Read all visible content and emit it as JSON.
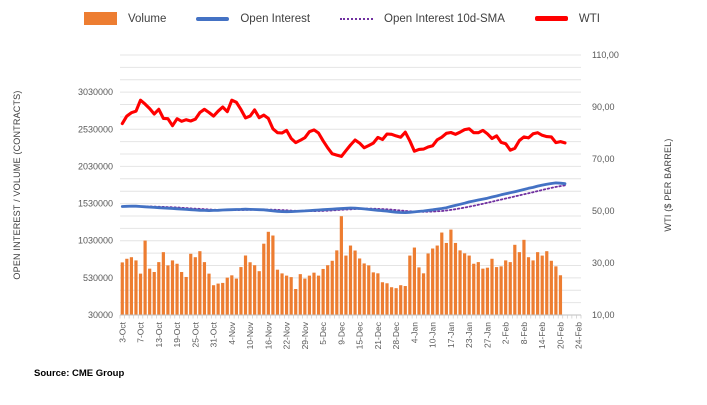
{
  "source": "Source: CME Group",
  "chart_data": {
    "type": "combo",
    "title": "",
    "grid": "horizontal-minor",
    "legend_position": "top",
    "x_axis": {
      "labels": [
        "3-Oct",
        "7-Oct",
        "13-Oct",
        "19-Oct",
        "25-Oct",
        "31-Oct",
        "4-Nov",
        "10-Nov",
        "16-Nov",
        "22-Nov",
        "29-Nov",
        "5-Dec",
        "9-Dec",
        "15-Dec",
        "21-Dec",
        "28-Dec",
        "4-Jan",
        "10-Jan",
        "17-Jan",
        "23-Jan",
        "27-Jan",
        "2-Feb",
        "8-Feb",
        "14-Feb",
        "20-Feb",
        "24-Feb"
      ],
      "label_slot_interval": 4,
      "total_slots": 101
    },
    "left_axis": {
      "title": "OPEN INTEREST / VOLUME (CONTRACTS)",
      "tick_labels": [
        "3030000",
        "2530000",
        "2030000",
        "1530000",
        "1030000",
        "530000",
        "30000"
      ],
      "tick_values": [
        3030000,
        2530000,
        2030000,
        1530000,
        1030000,
        530000,
        30000
      ],
      "min": 30000,
      "max": 3530000
    },
    "right_axis": {
      "title": "WTI ($ PER BARREL)",
      "tick_labels": [
        "110,00",
        "90,00",
        "70,00",
        "50,00",
        "30,00",
        "10,00"
      ],
      "tick_values": [
        110,
        90,
        70,
        50,
        30,
        10
      ],
      "min": 10,
      "max": 110
    },
    "dates": [
      "3-Oct",
      "4-Oct",
      "5-Oct",
      "6-Oct",
      "7-Oct",
      "10-Oct",
      "11-Oct",
      "12-Oct",
      "13-Oct",
      "14-Oct",
      "17-Oct",
      "18-Oct",
      "19-Oct",
      "20-Oct",
      "21-Oct",
      "24-Oct",
      "25-Oct",
      "26-Oct",
      "27-Oct",
      "28-Oct",
      "31-Oct",
      "1-Nov",
      "2-Nov",
      "3-Nov",
      "4-Nov",
      "7-Nov",
      "8-Nov",
      "9-Nov",
      "10-Nov",
      "11-Nov",
      "14-Nov",
      "15-Nov",
      "16-Nov",
      "17-Nov",
      "18-Nov",
      "21-Nov",
      "22-Nov",
      "23-Nov",
      "25-Nov",
      "28-Nov",
      "29-Nov",
      "30-Nov",
      "1-Dec",
      "2-Dec",
      "5-Dec",
      "6-Dec",
      "7-Dec",
      "8-Dec",
      "9-Dec",
      "12-Dec",
      "13-Dec",
      "14-Dec",
      "15-Dec",
      "16-Dec",
      "19-Dec",
      "20-Dec",
      "21-Dec",
      "22-Dec",
      "23-Dec",
      "27-Dec",
      "28-Dec",
      "29-Dec",
      "30-Dec",
      "3-Jan",
      "4-Jan",
      "5-Jan",
      "6-Jan",
      "9-Jan",
      "10-Jan",
      "11-Jan",
      "12-Jan",
      "13-Jan",
      "17-Jan",
      "18-Jan",
      "19-Jan",
      "20-Jan",
      "23-Jan",
      "24-Jan",
      "25-Jan",
      "26-Jan",
      "27-Jan",
      "30-Jan",
      "31-Jan",
      "1-Feb",
      "2-Feb",
      "3-Feb",
      "6-Feb",
      "7-Feb",
      "8-Feb",
      "9-Feb",
      "10-Feb",
      "13-Feb",
      "14-Feb",
      "15-Feb",
      "16-Feb",
      "17-Feb",
      "20-Feb",
      "21-Feb"
    ],
    "series": [
      {
        "name": "Volume",
        "type": "bar",
        "axis": "left",
        "color": "#ED7D31",
        "values": [
          738000,
          787000,
          808000,
          765000,
          587000,
          1032000,
          654000,
          609000,
          742000,
          876000,
          698000,
          765000,
          720000,
          609000,
          542000,
          854000,
          808000,
          889000,
          742000,
          587000,
          431000,
          453000,
          462000,
          533000,
          564000,
          520000,
          675000,
          831000,
          740000,
          700000,
          620000,
          990000,
          1150000,
          1100000,
          640000,
          590000,
          560000,
          540000,
          380000,
          580000,
          520000,
          560000,
          600000,
          560000,
          650000,
          700000,
          760000,
          900000,
          1360000,
          830000,
          965000,
          898000,
          791000,
          724000,
          698000,
          604000,
          591000,
          471000,
          457000,
          404000,
          391000,
          431000,
          420000,
          830000,
          938000,
          671000,
          591000,
          858000,
          925000,
          965000,
          1140000,
          1000000,
          1180000,
          1000000,
          900000,
          860000,
          830000,
          720000,
          742000,
          654000,
          667000,
          787000,
          675000,
          685000,
          765000,
          742000,
          975000,
          876000,
          1042000,
          808000,
          765000,
          876000,
          830000,
          889000,
          760000,
          685000,
          565000,
          null
        ]
      },
      {
        "name": "Open Interest",
        "type": "line",
        "axis": "left",
        "color": "#4472C4",
        "values": [
          1490000,
          1493000,
          1496000,
          1494000,
          1490000,
          1486000,
          1482000,
          1478000,
          1474000,
          1470000,
          1468000,
          1464000,
          1460000,
          1456000,
          1452000,
          1448000,
          1444000,
          1440000,
          1438000,
          1436000,
          1438000,
          1440000,
          1443000,
          1446000,
          1448000,
          1450000,
          1452000,
          1454000,
          1452000,
          1450000,
          1448000,
          1446000,
          1440000,
          1432000,
          1426000,
          1422000,
          1420000,
          1422000,
          1424000,
          1428000,
          1432000,
          1436000,
          1440000,
          1444000,
          1448000,
          1452000,
          1456000,
          1460000,
          1463000,
          1466000,
          1470000,
          1468000,
          1464000,
          1458000,
          1452000,
          1446000,
          1440000,
          1434000,
          1428000,
          1420000,
          1414000,
          1410000,
          1408000,
          1412000,
          1418000,
          1424000,
          1430000,
          1438000,
          1446000,
          1455000,
          1464000,
          1474000,
          1490000,
          1505000,
          1520000,
          1535000,
          1552000,
          1565000,
          1578000,
          1590000,
          1602000,
          1618000,
          1632000,
          1648000,
          1662000,
          1676000,
          1690000,
          1705000,
          1720000,
          1735000,
          1748000,
          1765000,
          1778000,
          1790000,
          1800000,
          1808000,
          1804000,
          1798000
        ]
      },
      {
        "name": "Open Interest 10d-SMA",
        "type": "line",
        "style": "dotted",
        "axis": "left",
        "color": "#7030A0",
        "derived_from": "Open Interest",
        "window": 10
      },
      {
        "name": "WTI",
        "type": "line",
        "axis": "right",
        "color": "#FF0000",
        "values": [
          83.6,
          86.5,
          87.8,
          88.4,
          92.6,
          91.1,
          89.4,
          87.3,
          89.1,
          85.6,
          85.5,
          82.8,
          85.5,
          84.5,
          85.1,
          84.6,
          85.3,
          87.9,
          89.1,
          87.9,
          86.5,
          88.4,
          90.0,
          88.2,
          92.6,
          91.8,
          89.0,
          85.8,
          86.5,
          88.9,
          85.9,
          86.9,
          85.6,
          81.6,
          80.1,
          80.0,
          81.0,
          77.9,
          76.3,
          77.2,
          78.2,
          80.5,
          81.2,
          80.0,
          77.0,
          74.3,
          72.0,
          71.5,
          71.0,
          73.2,
          75.4,
          77.3,
          76.1,
          74.3,
          75.2,
          76.1,
          78.3,
          77.5,
          79.6,
          79.5,
          78.9,
          78.4,
          80.3,
          77.0,
          73.0,
          73.7,
          73.8,
          74.6,
          75.1,
          77.4,
          78.4,
          79.9,
          80.2,
          79.5,
          80.3,
          81.3,
          81.6,
          80.1,
          80.1,
          81.0,
          79.7,
          77.9,
          78.9,
          76.4,
          75.9,
          73.4,
          74.1,
          77.1,
          78.5,
          78.1,
          79.7,
          80.1,
          79.1,
          78.6,
          78.5,
          76.3,
          76.7,
          76.2
        ]
      }
    ]
  }
}
